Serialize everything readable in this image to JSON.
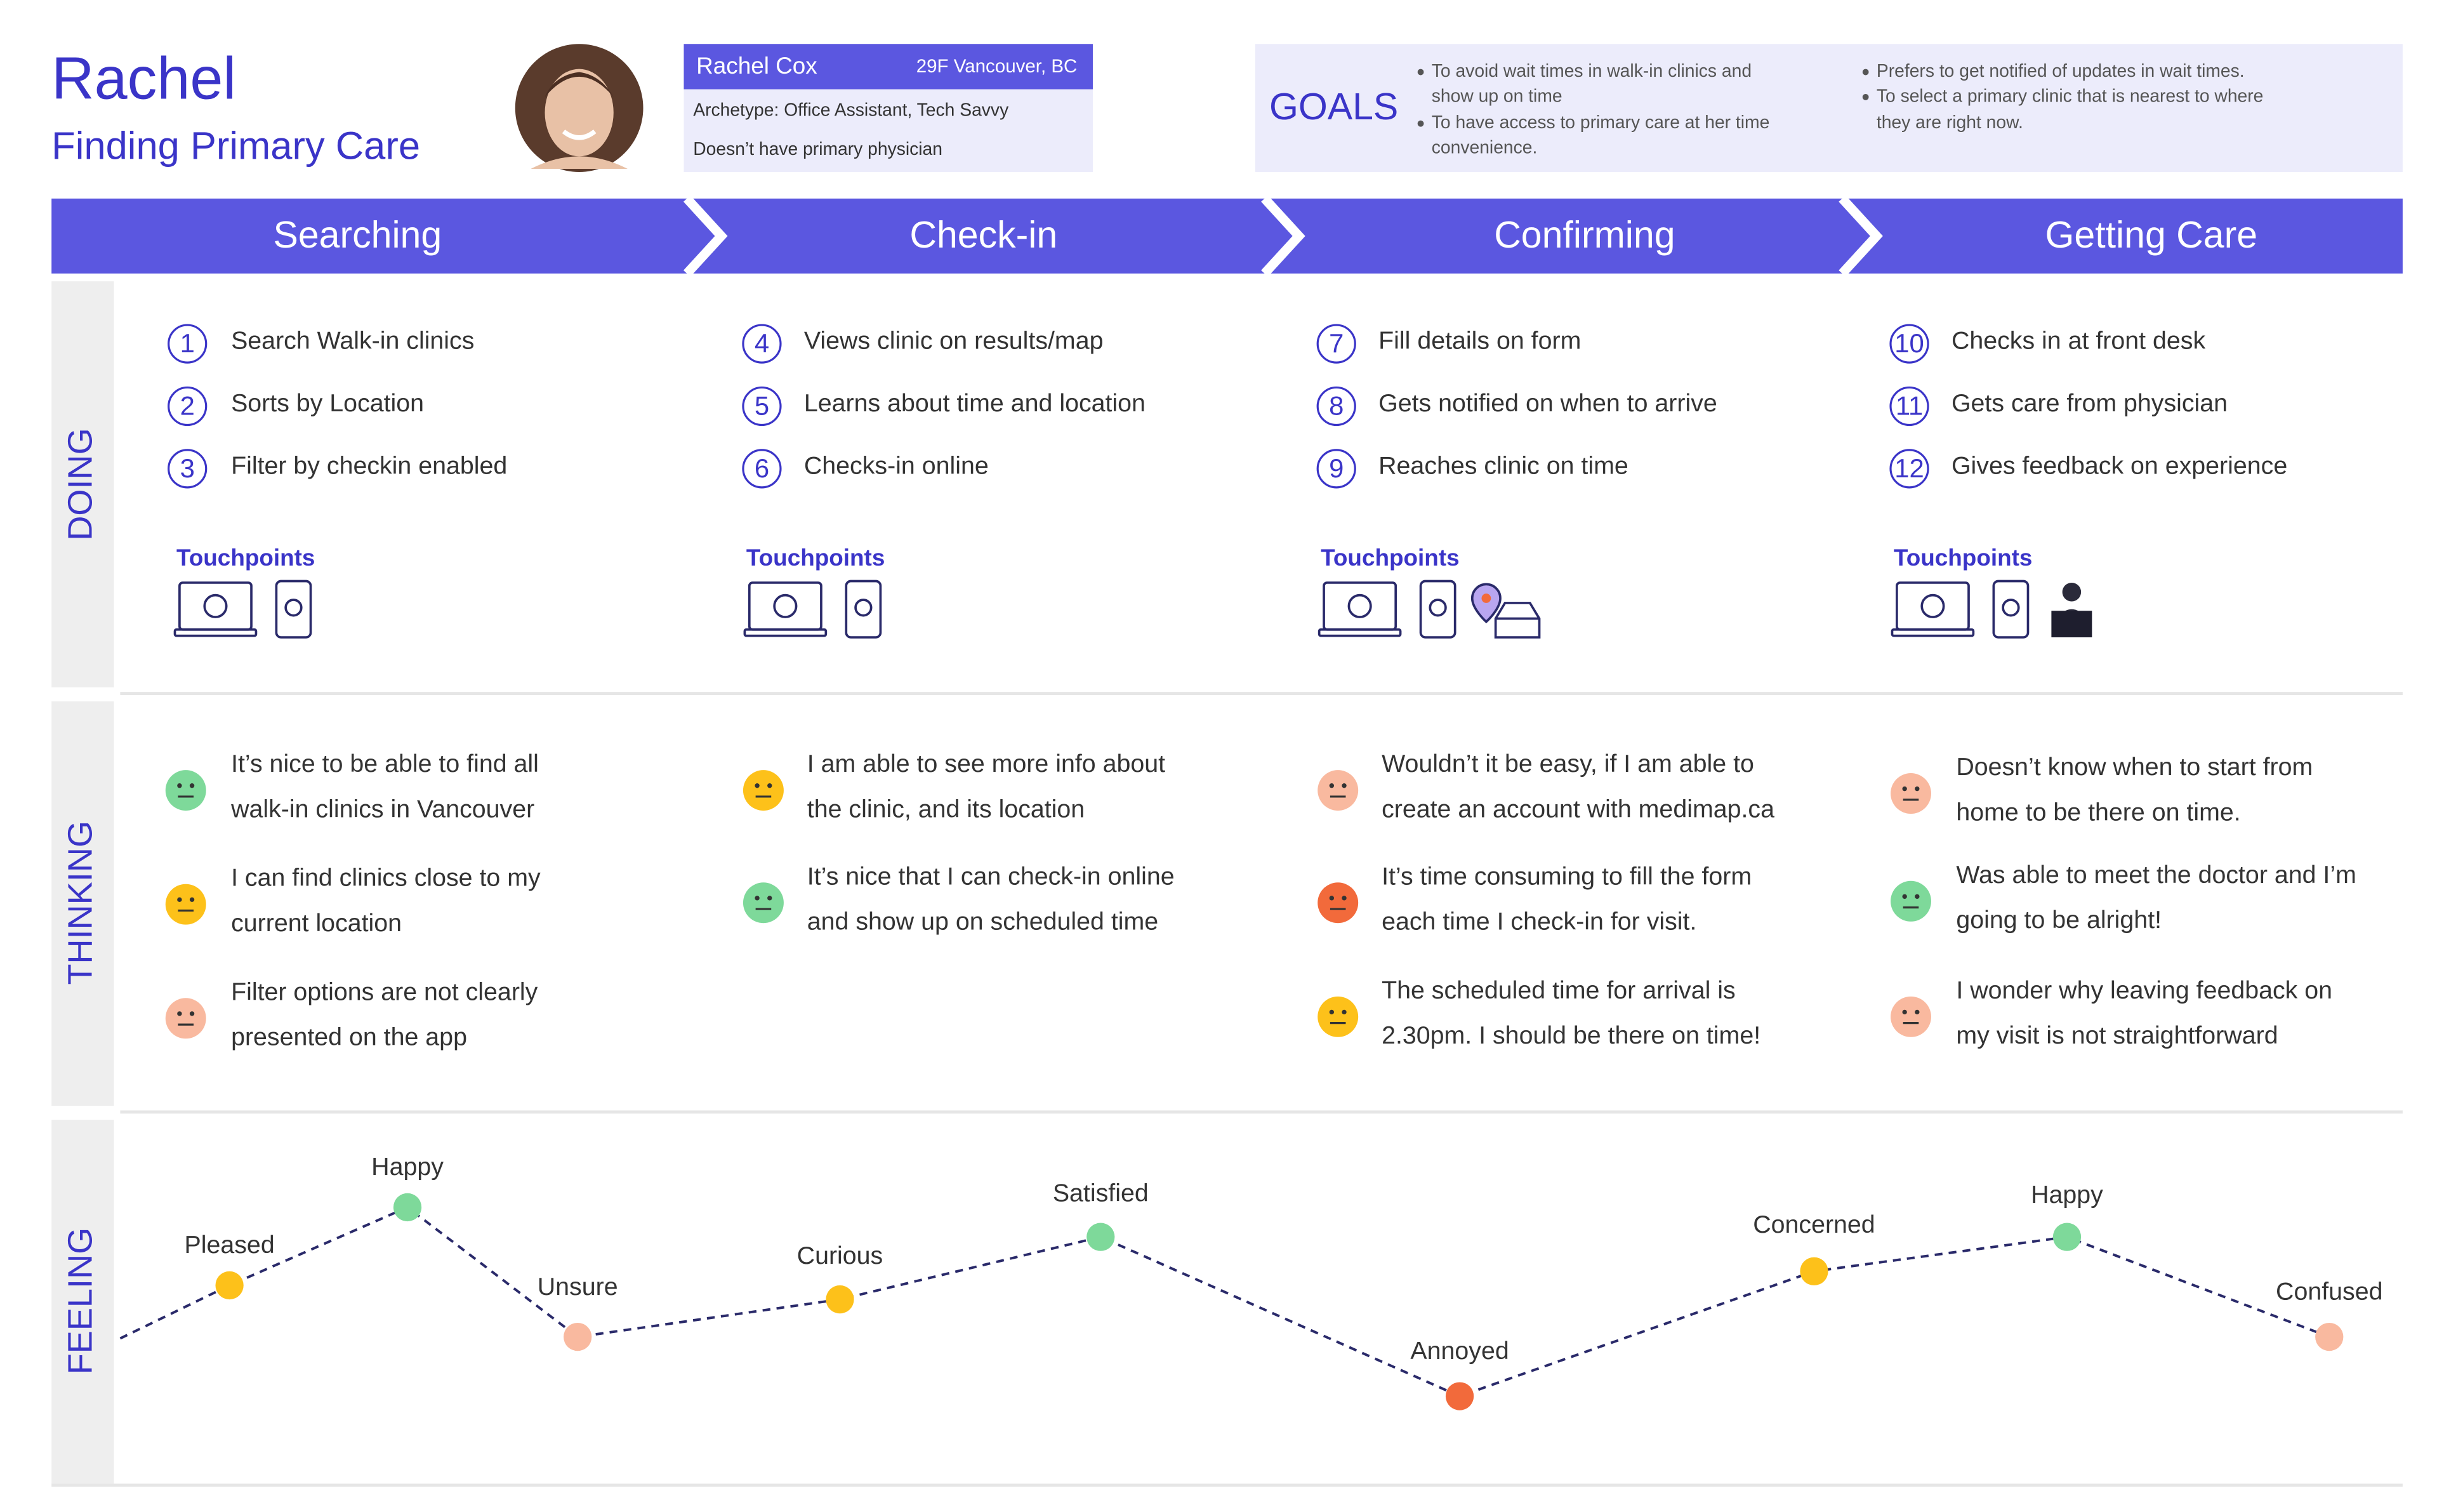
{
  "persona": {
    "name": "Rachel",
    "scenario": "Finding Primary Care",
    "card": {
      "name": "Rachel Cox",
      "details": "29F Vancouver, BC",
      "archetype": "Archetype: Office Assistant, Tech Savvy",
      "note": "Doesn’t have primary physician"
    }
  },
  "goals": {
    "title": "GOALS",
    "items": [
      [
        "To avoid wait times in walk-in clinics and",
        "show up on time"
      ],
      [
        "To have access to primary care at her time",
        "convenience."
      ],
      [
        "Prefers to get notified of updates in wait times."
      ],
      [
        "To select a primary clinic that is nearest to where",
        "they are right now."
      ]
    ]
  },
  "stages": [
    "Searching",
    "Check-in",
    "Confirming",
    "Getting Care"
  ],
  "rows": [
    "DOING",
    "THINKING",
    "FEELING"
  ],
  "doing": [
    {
      "steps": [
        {
          "number": 1,
          "text": "Search Walk-in clinics"
        },
        {
          "number": 2,
          "text": "Sorts by Location"
        },
        {
          "number": 3,
          "text": "Filter by checkin enabled"
        }
      ],
      "touchpoints": "Touchpoints"
    },
    {
      "steps": [
        {
          "number": 4,
          "text": "Views clinic on results/map"
        },
        {
          "number": 5,
          "text": "Learns about time and location"
        },
        {
          "number": 6,
          "text": "Checks-in online"
        }
      ],
      "touchpoints": "Touchpoints"
    },
    {
      "steps": [
        {
          "number": 7,
          "text": "Fill details on form"
        },
        {
          "number": 8,
          "text": "Gets notified on when to arrive"
        },
        {
          "number": 9,
          "text": "Reaches clinic on time"
        }
      ],
      "touchpoints": "Touchpoints"
    },
    {
      "steps": [
        {
          "number": 10,
          "text": "Checks in at front desk"
        },
        {
          "number": 11,
          "text": "Gets care from physician"
        },
        {
          "number": 12,
          "text": "Gives feedback on experience"
        }
      ],
      "touchpoints": "Touchpoints"
    }
  ],
  "thinking": [
    [
      {
        "color": "#7ed99a",
        "lines": [
          "It’s nice to be able to find all",
          "walk-in clinics in Vancouver"
        ]
      },
      {
        "color": "#fdc11a",
        "lines": [
          "I can find clinics close to my",
          "current location"
        ]
      },
      {
        "color": "#f9b99f",
        "lines": [
          "Filter options are not clearly",
          "presented on the app"
        ]
      }
    ],
    [
      {
        "color": "#fdc11a",
        "lines": [
          "I am able to see more info about",
          "the clinic, and its location"
        ]
      },
      {
        "color": "#7ed99a",
        "lines": [
          "It’s nice that I can check-in online",
          "and show up on scheduled time"
        ]
      }
    ],
    [
      {
        "color": "#f9b99f",
        "lines": [
          "Wouldn’t it be easy, if I am able to",
          "create an account with medimap.ca"
        ]
      },
      {
        "color": "#f26a3b",
        "lines": [
          "It’s time consuming to fill the form",
          "each time I check-in for visit."
        ]
      },
      {
        "color": "#fdc11a",
        "lines": [
          "The scheduled time for arrival is",
          "2.30pm. I should be there on time!"
        ]
      }
    ],
    [
      {
        "color": "#f9b99f",
        "lines": [
          "Doesn’t know when to start from",
          "home to be there on time."
        ]
      },
      {
        "color": "#7ed99a",
        "lines": [
          "Was able to meet the doctor and I’m",
          "going to be alright!"
        ]
      },
      {
        "color": "#f9b99f",
        "lines": [
          "I wonder why leaving feedback on",
          "my visit is not straightforward"
        ]
      }
    ]
  ],
  "feeling": [
    {
      "label": "Pleased",
      "color": "#fdc11a"
    },
    {
      "label": "Happy",
      "color": "#7ed99a"
    },
    {
      "label": "Unsure",
      "color": "#f9b99f"
    },
    {
      "label": "Curious",
      "color": "#fdc11a"
    },
    {
      "label": "Satisfied",
      "color": "#7ed99a"
    },
    {
      "label": "Annoyed",
      "color": "#f26a3b"
    },
    {
      "label": "Concerned",
      "color": "#fdc11a"
    },
    {
      "label": "Happy",
      "color": "#7ed99a"
    },
    {
      "label": "Confused",
      "color": "#f9b99f"
    }
  ]
}
